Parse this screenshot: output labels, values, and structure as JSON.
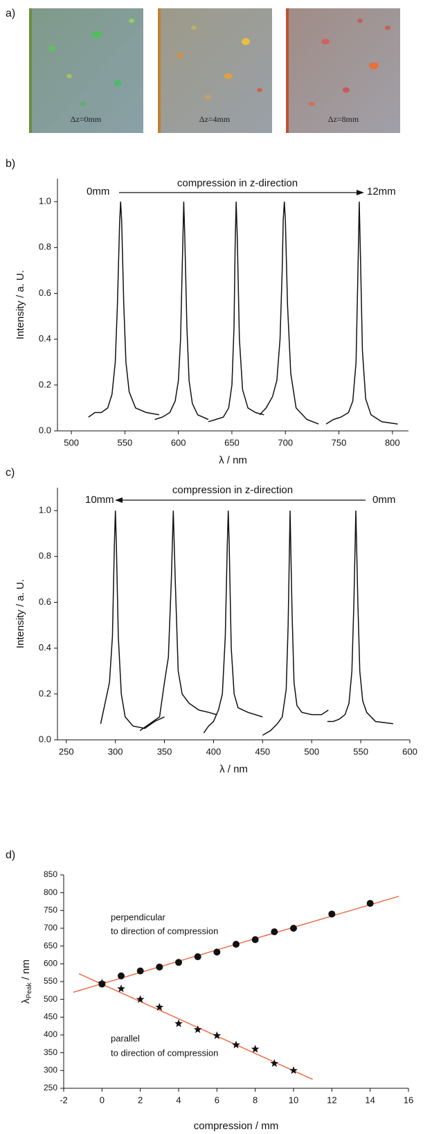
{
  "images_panel": {
    "panel_label": "a)",
    "captions": [
      "Δz=0mm",
      "Δz=4mm",
      "Δz=8mm"
    ]
  },
  "chart_data": [
    {
      "type": "line",
      "panel_label": "b)",
      "x_label": "λ / nm",
      "y_label": "Intensity / a. U.",
      "annotations": [
        "0mm",
        "compression in z-direction",
        "12mm"
      ],
      "xlim": [
        487,
        815
      ],
      "xticks": [
        500,
        550,
        600,
        650,
        700,
        750,
        800
      ],
      "ylim": [
        0,
        1.1
      ],
      "yticks": [
        {
          "value": 0,
          "label": "0.0"
        },
        0.2,
        0.4,
        0.6,
        0.8,
        {
          "value": 1,
          "label": "1.0"
        }
      ],
      "series": [
        {
          "color": "#111111",
          "x": [
            516,
            522,
            528,
            534,
            538,
            541,
            543,
            545,
            546,
            547,
            549,
            551,
            554,
            560,
            570,
            582
          ],
          "values": [
            0.06,
            0.08,
            0.08,
            0.1,
            0.16,
            0.3,
            0.55,
            0.9,
            1.0,
            0.92,
            0.55,
            0.3,
            0.17,
            0.1,
            0.08,
            0.07
          ]
        },
        {
          "color": "#111111",
          "x": [
            578,
            585,
            592,
            597,
            600,
            602,
            604,
            605,
            606,
            608,
            610,
            613,
            618,
            628
          ],
          "values": [
            0.05,
            0.06,
            0.08,
            0.13,
            0.22,
            0.4,
            0.8,
            1.0,
            0.85,
            0.45,
            0.22,
            0.12,
            0.07,
            0.05
          ]
        },
        {
          "color": "#111111",
          "x": [
            628,
            635,
            642,
            647,
            650,
            652,
            653,
            654,
            655,
            657,
            660,
            665,
            672,
            680
          ],
          "values": [
            0.04,
            0.05,
            0.06,
            0.1,
            0.2,
            0.45,
            0.8,
            1.0,
            0.85,
            0.4,
            0.18,
            0.1,
            0.08,
            0.07
          ]
        },
        {
          "color": "#111111",
          "x": [
            676,
            682,
            688,
            692,
            695,
            697,
            698,
            699,
            700,
            702,
            705,
            710,
            720,
            731
          ],
          "values": [
            0.07,
            0.1,
            0.15,
            0.22,
            0.4,
            0.7,
            0.92,
            1.0,
            0.92,
            0.55,
            0.25,
            0.1,
            0.05,
            0.03
          ]
        },
        {
          "color": "#111111",
          "x": [
            738,
            745,
            752,
            759,
            763,
            766,
            768,
            769,
            770,
            772,
            775,
            780,
            790,
            805
          ],
          "values": [
            0.03,
            0.05,
            0.06,
            0.08,
            0.13,
            0.3,
            0.75,
            1.0,
            0.8,
            0.35,
            0.14,
            0.07,
            0.04,
            0.03
          ]
        }
      ]
    },
    {
      "type": "line",
      "panel_label": "c)",
      "x_label": "λ / nm",
      "y_label": "Intensity / a. U.",
      "annotations": [
        "10mm",
        "compression in z-direction",
        "0mm"
      ],
      "xlim": [
        241,
        600
      ],
      "xticks": [
        250,
        300,
        350,
        400,
        450,
        500,
        550,
        600
      ],
      "ylim": [
        0,
        1.1
      ],
      "yticks": [
        {
          "value": 0,
          "label": "0.0"
        },
        0.2,
        0.4,
        0.6,
        0.8,
        {
          "value": 1,
          "label": "1.0"
        }
      ],
      "series": [
        {
          "color": "#111111",
          "x": [
            285,
            290,
            294,
            297,
            299,
            300,
            301,
            303,
            306,
            310,
            318,
            330,
            340,
            350
          ],
          "values": [
            0.07,
            0.17,
            0.25,
            0.45,
            0.85,
            1.0,
            0.85,
            0.45,
            0.2,
            0.1,
            0.06,
            0.05,
            0.08,
            0.1
          ]
        },
        {
          "color": "#111111",
          "x": [
            325,
            335,
            345,
            350,
            354,
            357,
            359,
            361,
            364,
            368,
            375,
            385,
            395,
            403
          ],
          "values": [
            0.04,
            0.07,
            0.1,
            0.25,
            0.36,
            0.7,
            1.0,
            0.7,
            0.3,
            0.2,
            0.16,
            0.13,
            0.12,
            0.11
          ]
        },
        {
          "color": "#111111",
          "x": [
            390,
            395,
            400,
            405,
            409,
            412,
            414,
            415,
            416,
            418,
            421,
            425,
            435,
            450
          ],
          "values": [
            0.03,
            0.06,
            0.08,
            0.13,
            0.2,
            0.45,
            0.85,
            1.0,
            0.85,
            0.4,
            0.2,
            0.14,
            0.12,
            0.1
          ]
        },
        {
          "color": "#111111",
          "x": [
            450,
            458,
            465,
            470,
            474,
            476,
            478,
            480,
            482,
            485,
            490,
            500,
            510,
            517
          ],
          "values": [
            0.02,
            0.04,
            0.07,
            0.1,
            0.22,
            0.5,
            1.0,
            0.55,
            0.25,
            0.15,
            0.12,
            0.11,
            0.11,
            0.13
          ]
        },
        {
          "color": "#111111",
          "x": [
            516,
            522,
            528,
            534,
            538,
            541,
            543,
            545,
            547,
            549,
            552,
            556,
            565,
            583
          ],
          "values": [
            0.08,
            0.08,
            0.09,
            0.11,
            0.16,
            0.3,
            0.6,
            1.0,
            0.6,
            0.3,
            0.17,
            0.12,
            0.08,
            0.07
          ]
        }
      ]
    },
    {
      "type": "scatter",
      "panel_label": "d)",
      "x_label": "compression / mm",
      "y_label": "λ",
      "y_label_sub": "Peak",
      "y_label_unit": " / nm",
      "annotations": [
        "perpendicular",
        "to direction of compression",
        "parallel",
        "to direction of compression"
      ],
      "xlim": [
        -2,
        16
      ],
      "xticks": [
        -2,
        0,
        2,
        4,
        6,
        8,
        10,
        12,
        14,
        16
      ],
      "ylim": [
        250,
        850
      ],
      "yticks": [
        250,
        300,
        350,
        400,
        450,
        500,
        550,
        600,
        650,
        700,
        750,
        800,
        850
      ],
      "series": [
        {
          "mode": "line",
          "color": "#f26a45",
          "x": [
            -1.5,
            15.5
          ],
          "values": [
            520,
            790
          ]
        },
        {
          "mode": "line",
          "color": "#f26a45",
          "x": [
            -1.2,
            11
          ],
          "values": [
            572,
            275
          ]
        },
        {
          "mode": "markers",
          "marker": "circle",
          "color": "#111111",
          "x": [
            0,
            1,
            2,
            3,
            4,
            5,
            6,
            7,
            8,
            9,
            10,
            12,
            14
          ],
          "values": [
            543,
            566,
            580,
            591,
            604,
            620,
            633,
            655,
            668,
            690,
            700,
            740,
            770
          ]
        },
        {
          "mode": "markers",
          "marker": "star",
          "color": "#111111",
          "x": [
            0,
            1,
            2,
            3,
            4,
            5,
            6,
            7,
            8,
            9,
            10
          ],
          "values": [
            546,
            530,
            500,
            478,
            432,
            415,
            398,
            372,
            360,
            320,
            300
          ]
        }
      ]
    }
  ]
}
